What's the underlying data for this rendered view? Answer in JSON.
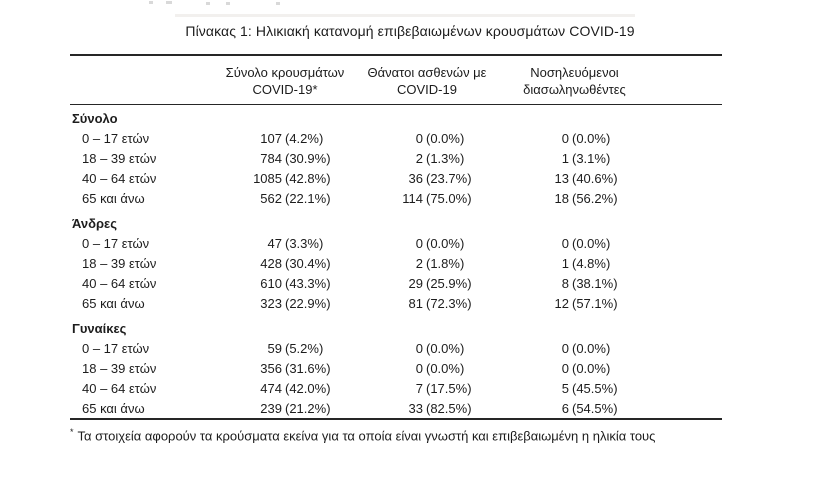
{
  "title": "Πίνακας 1: Ηλικιακή κατανομή επιβεβαιωμένων κρουσμάτων COVID-19",
  "table": {
    "columns": [
      {
        "line1": "Σύνολο κρουσμάτων",
        "line2": "COVID-19*"
      },
      {
        "line1": "Θάνατοι ασθενών με",
        "line2": "COVID-19"
      },
      {
        "line1": "Νοσηλευόμενοι",
        "line2": "διασωληνωθέντες"
      }
    ],
    "groups": [
      {
        "label": "Σύνολο",
        "rows": [
          {
            "label": "0 – 17 ετών",
            "cases_n": "107",
            "cases_pct": "(4.2%)",
            "deaths_n": "0",
            "deaths_pct": "(0.0%)",
            "icu_n": "0",
            "icu_pct": "(0.0%)"
          },
          {
            "label": "18 – 39 ετών",
            "cases_n": "784",
            "cases_pct": "(30.9%)",
            "deaths_n": "2",
            "deaths_pct": "(1.3%)",
            "icu_n": "1",
            "icu_pct": "(3.1%)"
          },
          {
            "label": "40 – 64 ετών",
            "cases_n": "1085",
            "cases_pct": "(42.8%)",
            "deaths_n": "36",
            "deaths_pct": "(23.7%)",
            "icu_n": "13",
            "icu_pct": "(40.6%)"
          },
          {
            "label": "65 και άνω",
            "cases_n": "562",
            "cases_pct": "(22.1%)",
            "deaths_n": "114",
            "deaths_pct": "(75.0%)",
            "icu_n": "18",
            "icu_pct": "(56.2%)"
          }
        ]
      },
      {
        "label": "Άνδρες",
        "rows": [
          {
            "label": "0 – 17 ετών",
            "cases_n": "47",
            "cases_pct": "(3.3%)",
            "deaths_n": "0",
            "deaths_pct": "(0.0%)",
            "icu_n": "0",
            "icu_pct": "(0.0%)"
          },
          {
            "label": "18 – 39 ετών",
            "cases_n": "428",
            "cases_pct": "(30.4%)",
            "deaths_n": "2",
            "deaths_pct": "(1.8%)",
            "icu_n": "1",
            "icu_pct": "(4.8%)"
          },
          {
            "label": "40 – 64 ετών",
            "cases_n": "610",
            "cases_pct": "(43.3%)",
            "deaths_n": "29",
            "deaths_pct": "(25.9%)",
            "icu_n": "8",
            "icu_pct": "(38.1%)"
          },
          {
            "label": "65 και άνω",
            "cases_n": "323",
            "cases_pct": "(22.9%)",
            "deaths_n": "81",
            "deaths_pct": "(72.3%)",
            "icu_n": "12",
            "icu_pct": "(57.1%)"
          }
        ]
      },
      {
        "label": "Γυναίκες",
        "rows": [
          {
            "label": "0 – 17 ετών",
            "cases_n": "59",
            "cases_pct": "(5.2%)",
            "deaths_n": "0",
            "deaths_pct": "(0.0%)",
            "icu_n": "0",
            "icu_pct": "(0.0%)"
          },
          {
            "label": "18 – 39 ετών",
            "cases_n": "356",
            "cases_pct": "(31.6%)",
            "deaths_n": "0",
            "deaths_pct": "(0.0%)",
            "icu_n": "0",
            "icu_pct": "(0.0%)"
          },
          {
            "label": "40 – 64 ετών",
            "cases_n": "474",
            "cases_pct": "(42.0%)",
            "deaths_n": "7",
            "deaths_pct": "(17.5%)",
            "icu_n": "5",
            "icu_pct": "(45.5%)"
          },
          {
            "label": "65 και άνω",
            "cases_n": "239",
            "cases_pct": "(21.2%)",
            "deaths_n": "33",
            "deaths_pct": "(82.5%)",
            "icu_n": "6",
            "icu_pct": "(54.5%)"
          }
        ]
      }
    ]
  },
  "footnote": {
    "marker": "*",
    "text": "Τα στοιχεία αφορούν τα κρούσματα εκείνα για τα οποία είναι γνωστή και επιβεβαιωμένη η ηλικία τους"
  }
}
